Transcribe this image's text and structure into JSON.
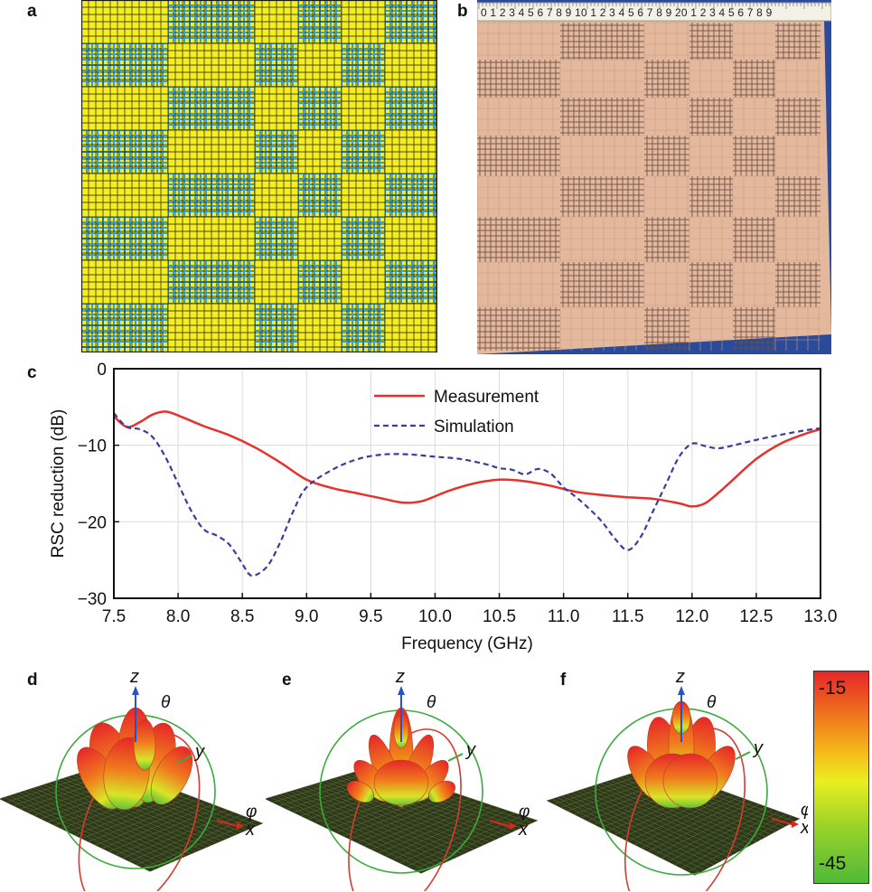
{
  "panels": {
    "a": "a",
    "b": "b",
    "c": "c",
    "d": "d",
    "e": "e",
    "f": "f"
  },
  "ruler": {
    "digits": "0 1 2 3 4 5 6 7 8 9 10 1 2 3 4 5 6 7 8 9 20 1 2 3 4 5 6 7 8 9"
  },
  "colors": {
    "checker_yellow": "#f4ee1e",
    "checker_blue": "#3a9ec6",
    "copper": "#e4b89c",
    "measurement": "#e8312a",
    "simulation": "#3b3d9e"
  },
  "chart_data": {
    "type": "line",
    "xlabel": "Frequency (GHz)",
    "ylabel": "RSC reduction (dB)",
    "xlim": [
      7.5,
      13.0
    ],
    "ylim": [
      -30,
      0
    ],
    "xticks": [
      "7.5",
      "8.0",
      "8.5",
      "9.0",
      "9.5",
      "10.0",
      "10.5",
      "11.0",
      "11.5",
      "12.0",
      "12.5",
      "13.0"
    ],
    "yticks": [
      "0",
      "−10",
      "−20",
      "−30"
    ],
    "grid": true,
    "legend": "top-center",
    "series": [
      {
        "name": "Measurement",
        "x": [
          7.5,
          7.6,
          7.7,
          7.8,
          7.9,
          8.0,
          8.2,
          8.4,
          8.6,
          8.8,
          9.0,
          9.2,
          9.4,
          9.6,
          9.75,
          9.9,
          10.1,
          10.3,
          10.5,
          10.7,
          10.9,
          11.1,
          11.3,
          11.5,
          11.7,
          11.9,
          12.0,
          12.1,
          12.2,
          12.3,
          12.5,
          12.7,
          12.9,
          13.0
        ],
        "y": [
          -6.2,
          -7.6,
          -7.0,
          -6.0,
          -5.6,
          -6.1,
          -7.5,
          -8.7,
          -10.3,
          -12.3,
          -14.5,
          -15.6,
          -16.3,
          -17.0,
          -17.5,
          -17.3,
          -16.0,
          -15.0,
          -14.5,
          -14.7,
          -15.3,
          -16.1,
          -16.5,
          -16.8,
          -17.0,
          -17.6,
          -18.0,
          -17.6,
          -16.3,
          -14.8,
          -11.8,
          -9.7,
          -8.4,
          -7.9
        ]
      },
      {
        "name": "Simulation",
        "x": [
          7.5,
          7.6,
          7.7,
          7.8,
          7.9,
          8.0,
          8.1,
          8.2,
          8.3,
          8.4,
          8.5,
          8.55,
          8.6,
          8.7,
          8.8,
          8.9,
          9.0,
          9.2,
          9.4,
          9.6,
          9.8,
          10.0,
          10.2,
          10.4,
          10.5,
          10.6,
          10.7,
          10.8,
          10.9,
          11.0,
          11.1,
          11.2,
          11.3,
          11.4,
          11.5,
          11.6,
          11.7,
          11.8,
          11.9,
          12.0,
          12.1,
          12.2,
          12.3,
          12.5,
          12.7,
          12.9,
          13.0
        ],
        "y": [
          -5.8,
          -7.6,
          -7.9,
          -8.9,
          -11.5,
          -15.0,
          -18.5,
          -21.0,
          -21.8,
          -23.0,
          -25.5,
          -26.8,
          -27.0,
          -25.7,
          -22.5,
          -18.5,
          -15.5,
          -13.2,
          -11.8,
          -11.2,
          -11.2,
          -11.5,
          -11.8,
          -12.5,
          -13.0,
          -13.2,
          -13.8,
          -13.1,
          -13.7,
          -15.5,
          -16.8,
          -18.3,
          -20.0,
          -22.2,
          -23.7,
          -22.0,
          -18.5,
          -15.0,
          -11.5,
          -9.8,
          -10.1,
          -10.4,
          -10.1,
          -9.3,
          -8.6,
          -8.0,
          -7.8
        ]
      }
    ]
  },
  "patterns": {
    "labels": {
      "z": "z",
      "y": "y",
      "x": "x",
      "theta": "θ",
      "phi": "φ"
    }
  },
  "colorbar": {
    "max_label": "-15",
    "min_label": "-45",
    "range": [
      -45,
      -15
    ]
  }
}
